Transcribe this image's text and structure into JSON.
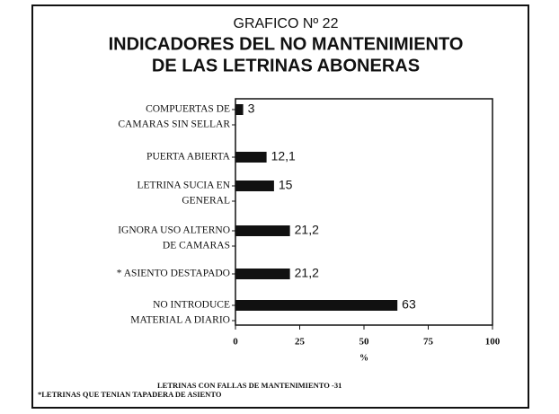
{
  "chart_data": {
    "type": "barh",
    "title_lines": [
      "GRAFICO Nº 22",
      "INDICADORES DEL NO MANTENIMIENTO",
      "DE LAS LETRINAS ABONERAS"
    ],
    "categories": [
      [
        "COMPUERTAS DE",
        "CAMARAS SIN SELLAR"
      ],
      [
        "PUERTA ABIERTA"
      ],
      [
        "LETRINA SUCIA EN",
        "GENERAL"
      ],
      [
        "IGNORA USO ALTERNO",
        "DE CAMARAS"
      ],
      [
        "* ASIENTO DESTAPADO"
      ],
      [
        "NO INTRODUCE",
        "MATERIAL A DIARIO"
      ]
    ],
    "values": [
      3,
      12.1,
      15,
      21.2,
      21.2,
      63
    ],
    "value_labels": [
      "3",
      "12,1",
      "15",
      "21,2",
      "21,2",
      "63"
    ],
    "color": "#111111",
    "xlim": [
      0,
      100
    ],
    "xticks": [
      0,
      25,
      50,
      75,
      100
    ],
    "xlabel": "%",
    "footnotes": [
      "LETRINAS CON FALLAS DE MANTENIMIENTO -31",
      "*LETRINAS QUE TENIAN TAPADERA DE ASIENTO"
    ]
  }
}
